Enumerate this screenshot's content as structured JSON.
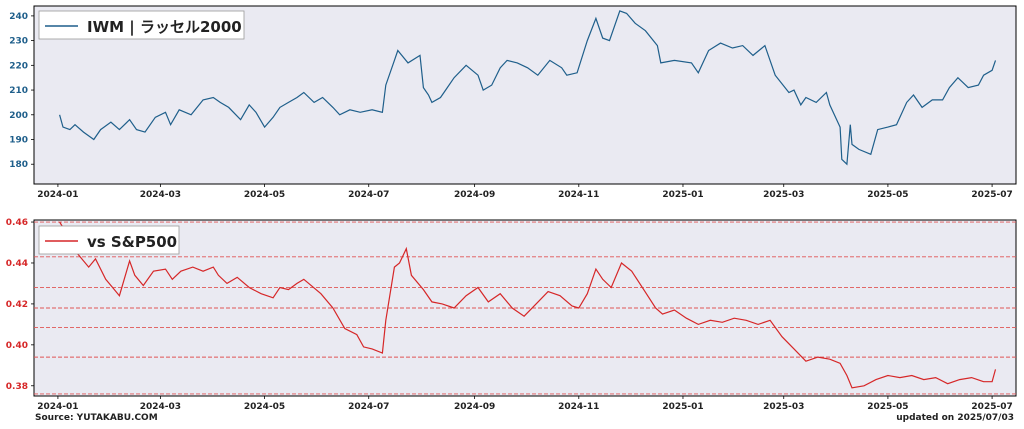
{
  "colors": {
    "panel_bg": "#eaeaf2",
    "top_line": "#1f5f8b",
    "top_tick": "#1f5f8b",
    "bottom_line": "#d62728",
    "bottom_tick": "#d62728",
    "hline": "#e05555"
  },
  "footer": {
    "source": "Source: YUTAKABU.COM",
    "updated": "updated on 2025/07/03"
  },
  "chart_data": [
    {
      "type": "line",
      "legend": "IWM | ラッセル2000",
      "legend_position": "top-left",
      "ylim": [
        172,
        244
      ],
      "yticks": [
        180,
        190,
        200,
        210,
        220,
        230,
        240
      ],
      "xlim": [
        "2023-12-18",
        "2025-07-15"
      ],
      "xticks": [
        "2024-01",
        "2024-03",
        "2024-05",
        "2024-07",
        "2024-09",
        "2024-11",
        "2025-01",
        "2025-03",
        "2025-05",
        "2025-07"
      ],
      "series": [
        {
          "name": "IWM | ラッセル2000",
          "points": [
            [
              "2024-01-02",
              200
            ],
            [
              "2024-01-04",
              195
            ],
            [
              "2024-01-08",
              194
            ],
            [
              "2024-01-11",
              196
            ],
            [
              "2024-01-16",
              193
            ],
            [
              "2024-01-22",
              190
            ],
            [
              "2024-01-26",
              194
            ],
            [
              "2024-02-01",
              197
            ],
            [
              "2024-02-06",
              194
            ],
            [
              "2024-02-12",
              198
            ],
            [
              "2024-02-16",
              194
            ],
            [
              "2024-02-21",
              193
            ],
            [
              "2024-02-27",
              199
            ],
            [
              "2024-03-04",
              201
            ],
            [
              "2024-03-07",
              196
            ],
            [
              "2024-03-12",
              202
            ],
            [
              "2024-03-19",
              200
            ],
            [
              "2024-03-26",
              206
            ],
            [
              "2024-04-01",
              207
            ],
            [
              "2024-04-05",
              205
            ],
            [
              "2024-04-10",
              203
            ],
            [
              "2024-04-17",
              198
            ],
            [
              "2024-04-22",
              204
            ],
            [
              "2024-04-26",
              201
            ],
            [
              "2024-05-01",
              195
            ],
            [
              "2024-05-06",
              199
            ],
            [
              "2024-05-10",
              203
            ],
            [
              "2024-05-15",
              205
            ],
            [
              "2024-05-20",
              207
            ],
            [
              "2024-05-24",
              209
            ],
            [
              "2024-05-30",
              205
            ],
            [
              "2024-06-04",
              207
            ],
            [
              "2024-06-10",
              203
            ],
            [
              "2024-06-14",
              200
            ],
            [
              "2024-06-20",
              202
            ],
            [
              "2024-06-26",
              201
            ],
            [
              "2024-07-03",
              202
            ],
            [
              "2024-07-09",
              201
            ],
            [
              "2024-07-11",
              212
            ],
            [
              "2024-07-16",
              222
            ],
            [
              "2024-07-18",
              226
            ],
            [
              "2024-07-24",
              221
            ],
            [
              "2024-07-31",
              224
            ],
            [
              "2024-08-02",
              211
            ],
            [
              "2024-08-05",
              208
            ],
            [
              "2024-08-07",
              205
            ],
            [
              "2024-08-12",
              207
            ],
            [
              "2024-08-15",
              210
            ],
            [
              "2024-08-20",
              215
            ],
            [
              "2024-08-27",
              220
            ],
            [
              "2024-09-03",
              216
            ],
            [
              "2024-09-06",
              210
            ],
            [
              "2024-09-11",
              212
            ],
            [
              "2024-09-16",
              219
            ],
            [
              "2024-09-20",
              222
            ],
            [
              "2024-09-26",
              221
            ],
            [
              "2024-10-02",
              219
            ],
            [
              "2024-10-08",
              216
            ],
            [
              "2024-10-15",
              222
            ],
            [
              "2024-10-22",
              219
            ],
            [
              "2024-10-25",
              216
            ],
            [
              "2024-10-31",
              217
            ],
            [
              "2024-11-06",
              230
            ],
            [
              "2024-11-11",
              239
            ],
            [
              "2024-11-15",
              231
            ],
            [
              "2024-11-19",
              230
            ],
            [
              "2024-11-25",
              242
            ],
            [
              "2024-11-29",
              241
            ],
            [
              "2024-12-04",
              237
            ],
            [
              "2024-12-10",
              234
            ],
            [
              "2024-12-17",
              228
            ],
            [
              "2024-12-19",
              221
            ],
            [
              "2024-12-27",
              222
            ],
            [
              "2025-01-06",
              221
            ],
            [
              "2025-01-10",
              217
            ],
            [
              "2025-01-16",
              226
            ],
            [
              "2025-01-23",
              229
            ],
            [
              "2025-01-30",
              227
            ],
            [
              "2025-02-05",
              228
            ],
            [
              "2025-02-11",
              224
            ],
            [
              "2025-02-18",
              228
            ],
            [
              "2025-02-24",
              216
            ],
            [
              "2025-03-04",
              209
            ],
            [
              "2025-03-07",
              210
            ],
            [
              "2025-03-11",
              204
            ],
            [
              "2025-03-14",
              207
            ],
            [
              "2025-03-20",
              205
            ],
            [
              "2025-03-26",
              209
            ],
            [
              "2025-03-28",
              204
            ],
            [
              "2025-04-03",
              195
            ],
            [
              "2025-04-04",
              182
            ],
            [
              "2025-04-07",
              180
            ],
            [
              "2025-04-09",
              196
            ],
            [
              "2025-04-10",
              188
            ],
            [
              "2025-04-14",
              186
            ],
            [
              "2025-04-21",
              184
            ],
            [
              "2025-04-25",
              194
            ],
            [
              "2025-05-01",
              195
            ],
            [
              "2025-05-06",
              196
            ],
            [
              "2025-05-12",
              205
            ],
            [
              "2025-05-16",
              208
            ],
            [
              "2025-05-21",
              203
            ],
            [
              "2025-05-27",
              206
            ],
            [
              "2025-06-02",
              206
            ],
            [
              "2025-06-06",
              211
            ],
            [
              "2025-06-11",
              215
            ],
            [
              "2025-06-17",
              211
            ],
            [
              "2025-06-23",
              212
            ],
            [
              "2025-06-26",
              216
            ],
            [
              "2025-07-01",
              218
            ],
            [
              "2025-07-03",
              222
            ]
          ]
        }
      ]
    },
    {
      "type": "line",
      "legend": "vs S&P500",
      "legend_position": "top-left",
      "ylim": [
        0.375,
        0.461
      ],
      "yticks": [
        0.38,
        0.4,
        0.42,
        0.44,
        0.46
      ],
      "hlines": [
        0.46,
        0.443,
        0.428,
        0.418,
        0.4085,
        0.394,
        0.376
      ],
      "xlim": [
        "2023-12-18",
        "2025-07-15"
      ],
      "xticks": [
        "2024-01",
        "2024-03",
        "2024-05",
        "2024-07",
        "2024-09",
        "2024-11",
        "2025-01",
        "2025-03",
        "2025-05",
        "2025-07"
      ],
      "series": [
        {
          "name": "vs S&P500",
          "points": [
            [
              "2024-01-02",
              0.46
            ],
            [
              "2024-01-08",
              0.452
            ],
            [
              "2024-01-12",
              0.445
            ],
            [
              "2024-01-19",
              0.438
            ],
            [
              "2024-01-23",
              0.442
            ],
            [
              "2024-01-29",
              0.432
            ],
            [
              "2024-02-02",
              0.428
            ],
            [
              "2024-02-06",
              0.424
            ],
            [
              "2024-02-12",
              0.441
            ],
            [
              "2024-02-15",
              0.434
            ],
            [
              "2024-02-20",
              0.429
            ],
            [
              "2024-02-26",
              0.436
            ],
            [
              "2024-03-04",
              0.437
            ],
            [
              "2024-03-08",
              0.432
            ],
            [
              "2024-03-13",
              0.436
            ],
            [
              "2024-03-20",
              0.438
            ],
            [
              "2024-03-26",
              0.436
            ],
            [
              "2024-04-01",
              0.438
            ],
            [
              "2024-04-04",
              0.434
            ],
            [
              "2024-04-09",
              0.43
            ],
            [
              "2024-04-15",
              0.433
            ],
            [
              "2024-04-22",
              0.428
            ],
            [
              "2024-04-29",
              0.425
            ],
            [
              "2024-05-06",
              0.423
            ],
            [
              "2024-05-10",
              0.428
            ],
            [
              "2024-05-15",
              0.427
            ],
            [
              "2024-05-20",
              0.43
            ],
            [
              "2024-05-24",
              0.432
            ],
            [
              "2024-06-03",
              0.425
            ],
            [
              "2024-06-10",
              0.418
            ],
            [
              "2024-06-17",
              0.408
            ],
            [
              "2024-06-24",
              0.405
            ],
            [
              "2024-06-28",
              0.399
            ],
            [
              "2024-07-03",
              0.398
            ],
            [
              "2024-07-09",
              0.396
            ],
            [
              "2024-07-11",
              0.412
            ],
            [
              "2024-07-16",
              0.438
            ],
            [
              "2024-07-19",
              0.44
            ],
            [
              "2024-07-23",
              0.447
            ],
            [
              "2024-07-26",
              0.434
            ],
            [
              "2024-08-02",
              0.427
            ],
            [
              "2024-08-07",
              0.421
            ],
            [
              "2024-08-13",
              0.42
            ],
            [
              "2024-08-20",
              0.418
            ],
            [
              "2024-08-27",
              0.424
            ],
            [
              "2024-09-03",
              0.428
            ],
            [
              "2024-09-09",
              0.421
            ],
            [
              "2024-09-16",
              0.425
            ],
            [
              "2024-09-23",
              0.418
            ],
            [
              "2024-09-30",
              0.414
            ],
            [
              "2024-10-07",
              0.42
            ],
            [
              "2024-10-14",
              0.426
            ],
            [
              "2024-10-21",
              0.424
            ],
            [
              "2024-10-28",
              0.419
            ],
            [
              "2024-11-01",
              0.418
            ],
            [
              "2024-11-06",
              0.425
            ],
            [
              "2024-11-11",
              0.437
            ],
            [
              "2024-11-15",
              0.432
            ],
            [
              "2024-11-20",
              0.428
            ],
            [
              "2024-11-26",
              0.44
            ],
            [
              "2024-12-02",
              0.436
            ],
            [
              "2024-12-09",
              0.427
            ],
            [
              "2024-12-16",
              0.418
            ],
            [
              "2024-12-20",
              0.415
            ],
            [
              "2024-12-27",
              0.417
            ],
            [
              "2025-01-03",
              0.413
            ],
            [
              "2025-01-10",
              0.41
            ],
            [
              "2025-01-17",
              0.412
            ],
            [
              "2025-01-24",
              0.411
            ],
            [
              "2025-01-31",
              0.413
            ],
            [
              "2025-02-07",
              0.412
            ],
            [
              "2025-02-14",
              0.41
            ],
            [
              "2025-02-21",
              0.412
            ],
            [
              "2025-02-28",
              0.404
            ],
            [
              "2025-03-07",
              0.398
            ],
            [
              "2025-03-14",
              0.392
            ],
            [
              "2025-03-21",
              0.394
            ],
            [
              "2025-03-28",
              0.393
            ],
            [
              "2025-04-03",
              0.391
            ],
            [
              "2025-04-07",
              0.385
            ],
            [
              "2025-04-10",
              0.379
            ],
            [
              "2025-04-17",
              0.38
            ],
            [
              "2025-04-24",
              0.383
            ],
            [
              "2025-05-01",
              0.385
            ],
            [
              "2025-05-08",
              0.384
            ],
            [
              "2025-05-15",
              0.385
            ],
            [
              "2025-05-22",
              0.383
            ],
            [
              "2025-05-29",
              0.384
            ],
            [
              "2025-06-05",
              0.381
            ],
            [
              "2025-06-12",
              0.383
            ],
            [
              "2025-06-19",
              0.384
            ],
            [
              "2025-06-26",
              0.382
            ],
            [
              "2025-07-01",
              0.382
            ],
            [
              "2025-07-03",
              0.388
            ]
          ]
        }
      ]
    }
  ]
}
